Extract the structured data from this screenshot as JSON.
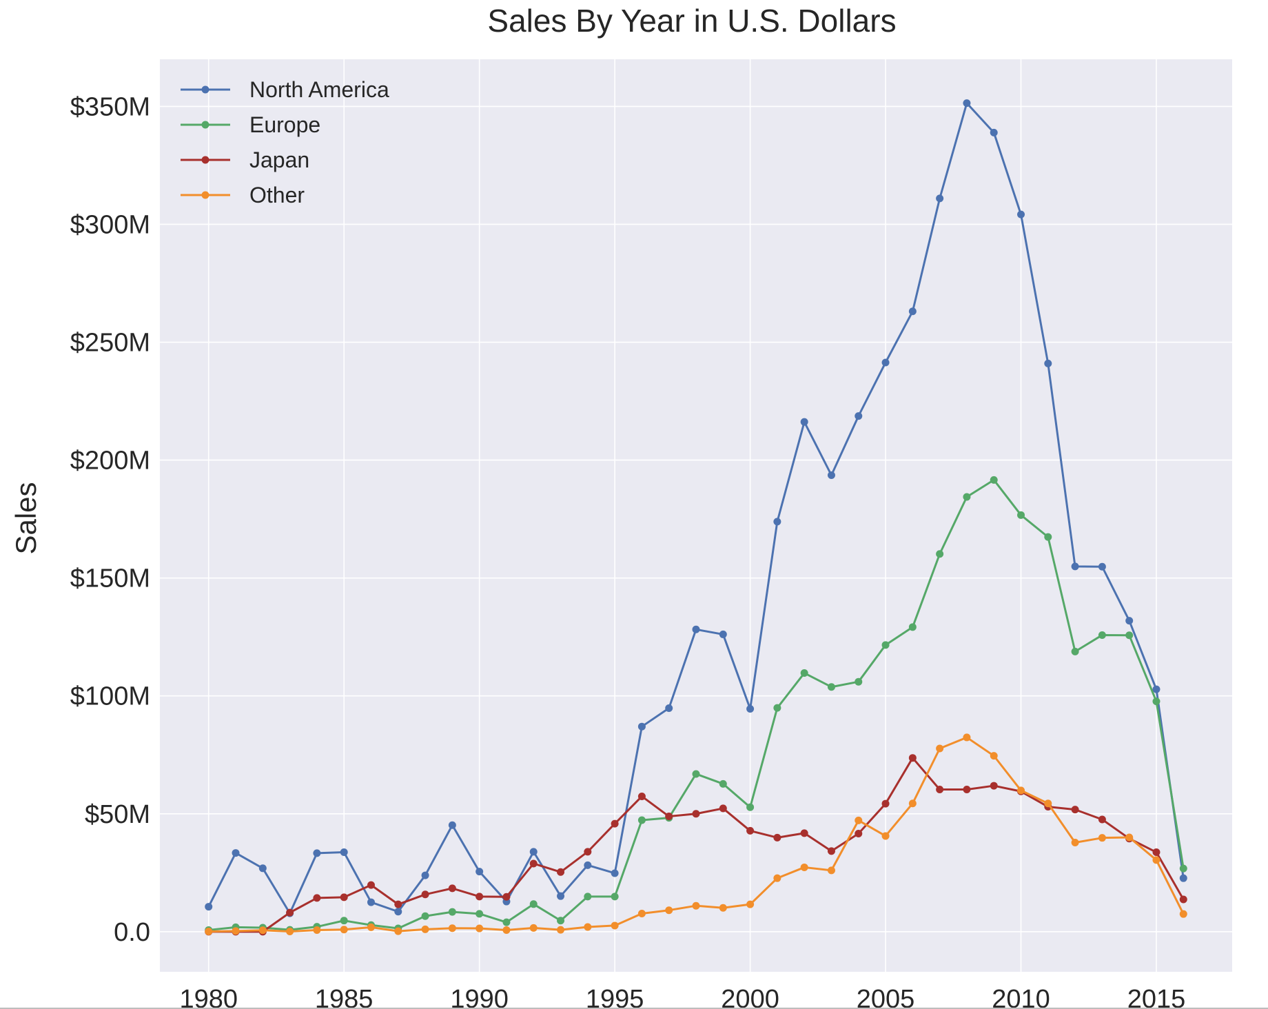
{
  "chart_data": {
    "type": "line",
    "title": "Sales By Year in U.S. Dollars",
    "xlabel": "",
    "ylabel": "Sales",
    "x": [
      1980,
      1981,
      1982,
      1983,
      1984,
      1985,
      1986,
      1987,
      1988,
      1989,
      1990,
      1991,
      1992,
      1993,
      1994,
      1995,
      1996,
      1997,
      1998,
      1999,
      2000,
      2001,
      2002,
      2003,
      2004,
      2005,
      2006,
      2007,
      2008,
      2009,
      2010,
      2011,
      2012,
      2013,
      2014,
      2015,
      2016
    ],
    "xlim": [
      1978.2,
      2017.8
    ],
    "ylim": [
      -17,
      370
    ],
    "y_unit": "millions of U.S. dollars",
    "x_ticks": [
      {
        "value": 1980,
        "label": "1980"
      },
      {
        "value": 1985,
        "label": "1985"
      },
      {
        "value": 1990,
        "label": "1990"
      },
      {
        "value": 1995,
        "label": "1995"
      },
      {
        "value": 2000,
        "label": "2000"
      },
      {
        "value": 2005,
        "label": "2005"
      },
      {
        "value": 2010,
        "label": "2010"
      },
      {
        "value": 2015,
        "label": "2015"
      }
    ],
    "y_ticks": [
      {
        "value": 0,
        "label": "0.0"
      },
      {
        "value": 50,
        "label": "$50M"
      },
      {
        "value": 100,
        "label": "$100M"
      },
      {
        "value": 150,
        "label": "$150M"
      },
      {
        "value": 200,
        "label": "$200M"
      },
      {
        "value": 250,
        "label": "$250M"
      },
      {
        "value": 300,
        "label": "$300M"
      },
      {
        "value": 350,
        "label": "$350M"
      }
    ],
    "grid": true,
    "legend_position": "top-left",
    "background_color": "#eaeaf2",
    "grid_color": "#ffffff",
    "series": [
      {
        "name": "North America",
        "color": "#4c72b0",
        "values": [
          10.6,
          33.4,
          26.9,
          7.8,
          33.3,
          33.7,
          12.5,
          8.5,
          23.9,
          45.2,
          25.5,
          12.8,
          33.9,
          15.1,
          28.2,
          24.8,
          87.0,
          94.8,
          128.2,
          126.1,
          94.5,
          173.9,
          216.2,
          193.6,
          218.7,
          241.4,
          263.1,
          311.0,
          351.4,
          338.9,
          304.2,
          241.0,
          154.9,
          154.8,
          131.9,
          102.8,
          22.7
        ]
      },
      {
        "name": "Europe",
        "color": "#55a868",
        "values": [
          0.7,
          1.9,
          1.7,
          0.8,
          2.1,
          4.7,
          2.8,
          1.4,
          6.6,
          8.4,
          7.6,
          4.0,
          11.7,
          4.7,
          14.9,
          14.9,
          47.3,
          48.3,
          66.9,
          62.7,
          52.8,
          94.9,
          109.7,
          103.8,
          106.0,
          121.6,
          129.2,
          160.2,
          184.4,
          191.6,
          176.7,
          167.4,
          118.8,
          125.8,
          125.7,
          97.7,
          26.8
        ]
      },
      {
        "name": "Japan",
        "color": "#a8302d",
        "values": [
          0.0,
          0.0,
          0.0,
          8.1,
          14.3,
          14.6,
          19.8,
          11.6,
          15.8,
          18.4,
          14.9,
          14.8,
          28.9,
          25.3,
          33.9,
          45.8,
          57.4,
          48.9,
          50.0,
          52.3,
          42.8,
          39.9,
          41.8,
          34.2,
          41.6,
          54.3,
          73.7,
          60.3,
          60.3,
          61.9,
          59.5,
          53.0,
          51.8,
          47.6,
          39.5,
          33.7,
          13.7
        ]
      },
      {
        "name": "Other",
        "color": "#f28e2b",
        "values": [
          0.1,
          0.3,
          0.6,
          0.1,
          0.7,
          0.9,
          1.9,
          0.2,
          1.0,
          1.5,
          1.4,
          0.7,
          1.6,
          0.8,
          2.0,
          2.6,
          7.7,
          9.1,
          11.0,
          10.1,
          11.6,
          22.7,
          27.3,
          26.0,
          47.2,
          40.6,
          54.4,
          77.7,
          82.4,
          74.6,
          59.9,
          54.4,
          37.8,
          39.8,
          40.0,
          30.4,
          7.5
        ]
      }
    ]
  }
}
